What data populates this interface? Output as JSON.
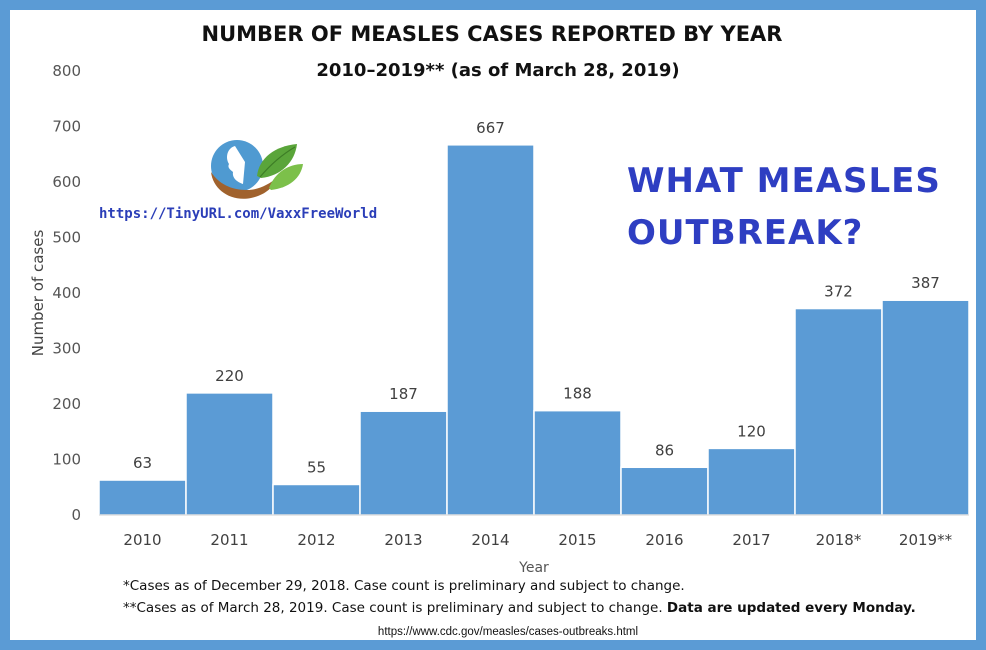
{
  "title": "NUMBER OF MEASLES CASES REPORTED BY YEAR",
  "subtitle": "2010–2019** (as of March 28, 2019)",
  "watermark_url": "https://TinyURL.com/VaxxFreeWorld",
  "promo_line1": "WHAT MEASLES",
  "promo_line2": "OUTBREAK?",
  "footnotes": {
    "note1": "*Cases as of December 29, 2018. Case count is preliminary and subject to change.",
    "note2": "**Cases as of March 28, 2019. Case count is preliminary and subject to change.",
    "note2_bold": "Data are updated every Monday."
  },
  "source": "https://www.cdc.gov/measles/cases-outbreaks.html",
  "colors": {
    "bar": "#5b9bd5",
    "frame": "#5b9bd5",
    "promo": "#2e3ec2",
    "url": "#2b3eb8"
  },
  "icons": [
    "logo-hands-face-leaves-icon"
  ],
  "chart_data": {
    "type": "bar",
    "title": "NUMBER OF MEASLES CASES REPORTED BY YEAR",
    "subtitle": "2010–2019** (as of March 28, 2019)",
    "xlabel": "Year",
    "ylabel": "Number of cases",
    "categories": [
      "2010",
      "2011",
      "2012",
      "2013",
      "2014",
      "2015",
      "2016",
      "2017",
      "2018*",
      "2019**"
    ],
    "values": [
      63,
      220,
      55,
      187,
      667,
      188,
      86,
      120,
      372,
      387
    ],
    "data_labels": [
      "63",
      "220",
      "55",
      "187",
      "667",
      "188",
      "86",
      "120",
      "372",
      "387"
    ],
    "yticks": [
      "0",
      "100",
      "200",
      "300",
      "400",
      "500",
      "600",
      "700",
      "800"
    ],
    "ylim": [
      0,
      800
    ],
    "grid": false,
    "legend": "none"
  }
}
